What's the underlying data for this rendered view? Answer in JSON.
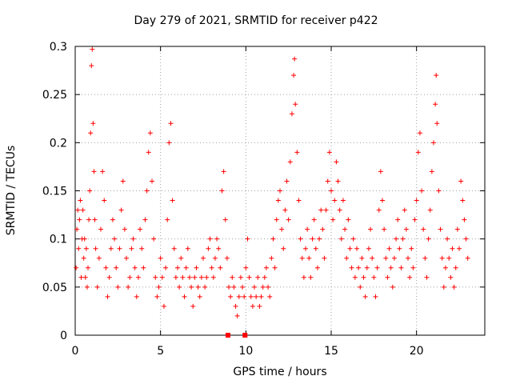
{
  "chart_data": {
    "type": "scatter",
    "title": "Day 279 of 2021, SRMTID for receiver p422",
    "xlabel": "GPS time / hours",
    "ylabel": "SRMTID / TECUs",
    "xlim": [
      0,
      24
    ],
    "ylim": [
      0,
      0.3
    ],
    "xticks": [
      0,
      5,
      10,
      15,
      20
    ],
    "yticks": [
      0,
      0.05,
      0.1,
      0.15,
      0.2,
      0.25,
      0.3
    ],
    "xtick_labels": [
      "0",
      "5",
      "10",
      "15",
      "20"
    ],
    "ytick_labels": [
      "0",
      "0.05",
      "0.1",
      "0.15",
      "0.2",
      "0.25",
      "0.3"
    ],
    "grid": true,
    "marker": "+",
    "color": "#ff0000",
    "series": [
      {
        "name": "SRMTID",
        "points": [
          [
            0.05,
            0.07
          ],
          [
            0.1,
            0.11
          ],
          [
            0.15,
            0.13
          ],
          [
            0.2,
            0.09
          ],
          [
            0.25,
            0.12
          ],
          [
            0.3,
            0.14
          ],
          [
            0.35,
            0.06
          ],
          [
            0.4,
            0.1
          ],
          [
            0.45,
            0.13
          ],
          [
            0.5,
            0.08
          ],
          [
            0.55,
            0.1
          ],
          [
            0.6,
            0.06
          ],
          [
            0.65,
            0.09
          ],
          [
            0.7,
            0.05
          ],
          [
            0.75,
            0.07
          ],
          [
            0.8,
            0.12
          ],
          [
            0.85,
            0.15
          ],
          [
            0.9,
            0.21
          ],
          [
            0.95,
            0.28
          ],
          [
            1.0,
            0.297
          ],
          [
            1.05,
            0.22
          ],
          [
            1.1,
            0.17
          ],
          [
            1.15,
            0.12
          ],
          [
            1.2,
            0.09
          ],
          [
            1.3,
            0.05
          ],
          [
            1.4,
            0.08
          ],
          [
            1.5,
            0.11
          ],
          [
            1.6,
            0.17
          ],
          [
            1.7,
            0.14
          ],
          [
            1.8,
            0.07
          ],
          [
            1.9,
            0.04
          ],
          [
            2.0,
            0.06
          ],
          [
            2.1,
            0.09
          ],
          [
            2.2,
            0.12
          ],
          [
            2.3,
            0.1
          ],
          [
            2.4,
            0.07
          ],
          [
            2.5,
            0.05
          ],
          [
            2.6,
            0.09
          ],
          [
            2.7,
            0.13
          ],
          [
            2.8,
            0.16
          ],
          [
            2.9,
            0.11
          ],
          [
            3.0,
            0.08
          ],
          [
            3.1,
            0.05
          ],
          [
            3.2,
            0.06
          ],
          [
            3.3,
            0.09
          ],
          [
            3.4,
            0.1
          ],
          [
            3.5,
            0.07
          ],
          [
            3.6,
            0.04
          ],
          [
            3.7,
            0.06
          ],
          [
            3.8,
            0.11
          ],
          [
            3.9,
            0.09
          ],
          [
            4.0,
            0.07
          ],
          [
            4.1,
            0.12
          ],
          [
            4.2,
            0.15
          ],
          [
            4.3,
            0.19
          ],
          [
            4.4,
            0.21
          ],
          [
            4.5,
            0.16
          ],
          [
            4.6,
            0.1
          ],
          [
            4.7,
            0.06
          ],
          [
            4.8,
            0.04
          ],
          [
            4.9,
            0.05
          ],
          [
            5.0,
            0.08
          ],
          [
            5.1,
            0.06
          ],
          [
            5.2,
            0.03
          ],
          [
            5.3,
            0.07
          ],
          [
            5.4,
            0.12
          ],
          [
            5.5,
            0.2
          ],
          [
            5.6,
            0.22
          ],
          [
            5.7,
            0.14
          ],
          [
            5.8,
            0.09
          ],
          [
            5.9,
            0.06
          ],
          [
            6.0,
            0.07
          ],
          [
            6.1,
            0.05
          ],
          [
            6.2,
            0.08
          ],
          [
            6.3,
            0.06
          ],
          [
            6.4,
            0.04
          ],
          [
            6.5,
            0.07
          ],
          [
            6.6,
            0.09
          ],
          [
            6.7,
            0.06
          ],
          [
            6.8,
            0.05
          ],
          [
            6.9,
            0.03
          ],
          [
            7.0,
            0.06
          ],
          [
            7.1,
            0.07
          ],
          [
            7.2,
            0.05
          ],
          [
            7.3,
            0.04
          ],
          [
            7.4,
            0.06
          ],
          [
            7.5,
            0.08
          ],
          [
            7.6,
            0.05
          ],
          [
            7.7,
            0.06
          ],
          [
            7.8,
            0.09
          ],
          [
            7.9,
            0.1
          ],
          [
            8.0,
            0.07
          ],
          [
            8.1,
            0.06
          ],
          [
            8.2,
            0.08
          ],
          [
            8.3,
            0.1
          ],
          [
            8.4,
            0.09
          ],
          [
            8.5,
            0.07
          ],
          [
            8.6,
            0.15
          ],
          [
            8.7,
            0.17
          ],
          [
            8.8,
            0.12
          ],
          [
            8.9,
            0.08
          ],
          [
            9.0,
            0.05
          ],
          [
            9.1,
            0.04
          ],
          [
            9.2,
            0.06
          ],
          [
            9.3,
            0.05
          ],
          [
            9.4,
            0.03
          ],
          [
            9.5,
            0.02
          ],
          [
            9.6,
            0.04
          ],
          [
            9.7,
            0.06
          ],
          [
            9.8,
            0.05
          ],
          [
            9.9,
            0.04
          ],
          [
            10.0,
            0.07
          ],
          [
            10.1,
            0.1
          ],
          [
            10.2,
            0.06
          ],
          [
            10.3,
            0.04
          ],
          [
            10.4,
            0.03
          ],
          [
            10.5,
            0.05
          ],
          [
            10.6,
            0.04
          ],
          [
            10.7,
            0.06
          ],
          [
            10.8,
            0.03
          ],
          [
            10.9,
            0.04
          ],
          [
            11.0,
            0.05
          ],
          [
            11.1,
            0.06
          ],
          [
            11.2,
            0.07
          ],
          [
            11.3,
            0.05
          ],
          [
            11.4,
            0.04
          ],
          [
            11.5,
            0.08
          ],
          [
            11.6,
            0.1
          ],
          [
            11.7,
            0.07
          ],
          [
            11.8,
            0.12
          ],
          [
            11.9,
            0.14
          ],
          [
            12.0,
            0.15
          ],
          [
            12.1,
            0.11
          ],
          [
            12.2,
            0.09
          ],
          [
            12.3,
            0.13
          ],
          [
            12.4,
            0.16
          ],
          [
            12.5,
            0.12
          ],
          [
            12.6,
            0.18
          ],
          [
            12.7,
            0.23
          ],
          [
            12.8,
            0.27
          ],
          [
            12.85,
            0.287
          ],
          [
            12.9,
            0.24
          ],
          [
            13.0,
            0.19
          ],
          [
            13.1,
            0.14
          ],
          [
            13.2,
            0.1
          ],
          [
            13.3,
            0.08
          ],
          [
            13.4,
            0.06
          ],
          [
            13.5,
            0.09
          ],
          [
            13.6,
            0.11
          ],
          [
            13.7,
            0.08
          ],
          [
            13.8,
            0.06
          ],
          [
            13.9,
            0.1
          ],
          [
            14.0,
            0.12
          ],
          [
            14.1,
            0.09
          ],
          [
            14.2,
            0.07
          ],
          [
            14.3,
            0.1
          ],
          [
            14.4,
            0.13
          ],
          [
            14.5,
            0.11
          ],
          [
            14.6,
            0.08
          ],
          [
            14.7,
            0.13
          ],
          [
            14.8,
            0.16
          ],
          [
            14.9,
            0.19
          ],
          [
            15.0,
            0.15
          ],
          [
            15.1,
            0.12
          ],
          [
            15.2,
            0.14
          ],
          [
            15.3,
            0.18
          ],
          [
            15.4,
            0.16
          ],
          [
            15.5,
            0.13
          ],
          [
            15.6,
            0.1
          ],
          [
            15.7,
            0.14
          ],
          [
            15.8,
            0.11
          ],
          [
            15.9,
            0.08
          ],
          [
            16.0,
            0.12
          ],
          [
            16.1,
            0.09
          ],
          [
            16.2,
            0.07
          ],
          [
            16.3,
            0.1
          ],
          [
            16.4,
            0.06
          ],
          [
            16.5,
            0.09
          ],
          [
            16.6,
            0.07
          ],
          [
            16.7,
            0.05
          ],
          [
            16.8,
            0.08
          ],
          [
            16.9,
            0.06
          ],
          [
            17.0,
            0.04
          ],
          [
            17.1,
            0.07
          ],
          [
            17.2,
            0.09
          ],
          [
            17.3,
            0.11
          ],
          [
            17.4,
            0.08
          ],
          [
            17.5,
            0.06
          ],
          [
            17.6,
            0.04
          ],
          [
            17.7,
            0.07
          ],
          [
            17.8,
            0.13
          ],
          [
            17.9,
            0.17
          ],
          [
            18.0,
            0.14
          ],
          [
            18.1,
            0.11
          ],
          [
            18.2,
            0.08
          ],
          [
            18.3,
            0.06
          ],
          [
            18.4,
            0.09
          ],
          [
            18.5,
            0.07
          ],
          [
            18.6,
            0.05
          ],
          [
            18.7,
            0.08
          ],
          [
            18.8,
            0.1
          ],
          [
            18.9,
            0.12
          ],
          [
            19.0,
            0.09
          ],
          [
            19.1,
            0.07
          ],
          [
            19.2,
            0.1
          ],
          [
            19.3,
            0.13
          ],
          [
            19.4,
            0.11
          ],
          [
            19.5,
            0.08
          ],
          [
            19.6,
            0.06
          ],
          [
            19.7,
            0.09
          ],
          [
            19.8,
            0.07
          ],
          [
            19.9,
            0.12
          ],
          [
            20.0,
            0.14
          ],
          [
            20.1,
            0.19
          ],
          [
            20.2,
            0.21
          ],
          [
            20.3,
            0.15
          ],
          [
            20.4,
            0.11
          ],
          [
            20.5,
            0.08
          ],
          [
            20.6,
            0.06
          ],
          [
            20.7,
            0.1
          ],
          [
            20.8,
            0.13
          ],
          [
            20.9,
            0.17
          ],
          [
            21.0,
            0.2
          ],
          [
            21.1,
            0.24
          ],
          [
            21.15,
            0.27
          ],
          [
            21.2,
            0.22
          ],
          [
            21.3,
            0.15
          ],
          [
            21.4,
            0.11
          ],
          [
            21.5,
            0.08
          ],
          [
            21.6,
            0.05
          ],
          [
            21.7,
            0.07
          ],
          [
            21.8,
            0.1
          ],
          [
            21.9,
            0.08
          ],
          [
            22.0,
            0.06
          ],
          [
            22.1,
            0.09
          ],
          [
            22.2,
            0.05
          ],
          [
            22.3,
            0.07
          ],
          [
            22.4,
            0.11
          ],
          [
            22.5,
            0.09
          ],
          [
            22.6,
            0.16
          ],
          [
            22.7,
            0.14
          ],
          [
            22.8,
            0.12
          ],
          [
            22.9,
            0.1
          ],
          [
            23.0,
            0.08
          ]
        ]
      }
    ],
    "annotations": [
      {
        "type": "square-marker",
        "x": 8.95,
        "y": 0.0
      },
      {
        "type": "square-marker",
        "x": 9.95,
        "y": 0.0
      }
    ]
  }
}
